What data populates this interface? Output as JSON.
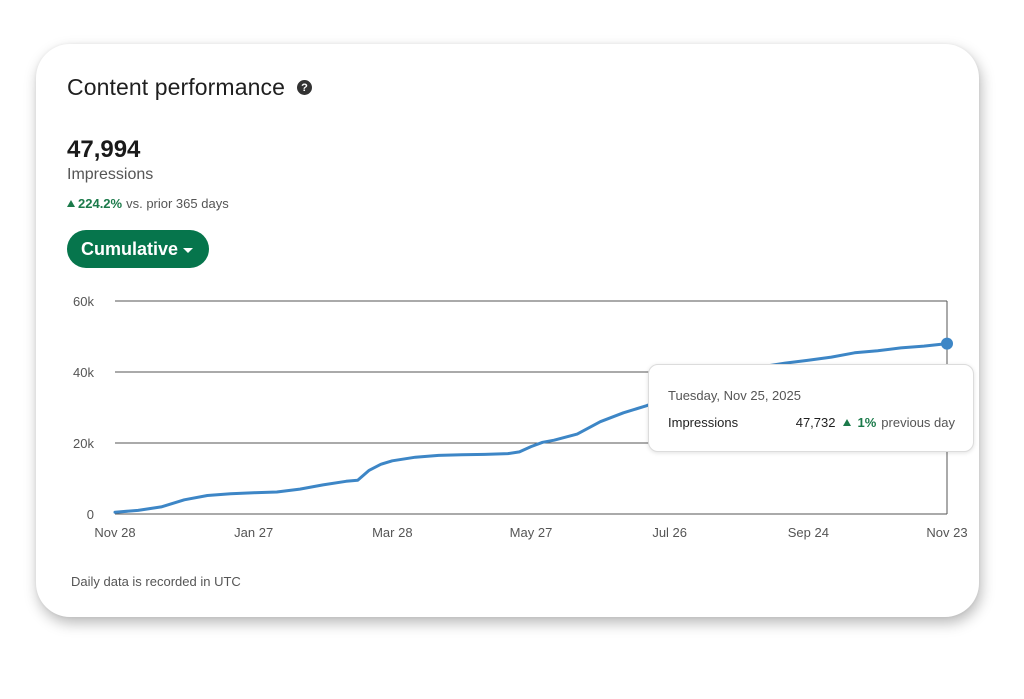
{
  "card": {
    "title": "Content performance",
    "help_icon": "help-circle-icon",
    "help_glyph": "?",
    "metric_value": "47,994",
    "metric_label": "Impressions",
    "change_value": "224.2%",
    "change_suffix": "vs. prior 365 days",
    "dropdown_label": "Cumulative",
    "footer_note": "Daily data is recorded in UTC"
  },
  "tooltip": {
    "date": "Tuesday, Nov 25, 2025",
    "label": "Impressions",
    "value": "47,732",
    "change": "1%",
    "change_suffix": "previous day"
  },
  "colors": {
    "line": "#3d86c6",
    "accent_green": "#06754c",
    "positive": "#1b7a4a",
    "grid": "#555555"
  },
  "chart_data": {
    "type": "line",
    "xlabel": "",
    "ylabel": "",
    "x_ticks": [
      "Nov 28",
      "Jan 27",
      "Mar 28",
      "May 27",
      "Jul 26",
      "Sep 24",
      "Nov 23"
    ],
    "y_ticks": [
      "0",
      "20k",
      "40k",
      "60k"
    ],
    "ylim": [
      0,
      60000
    ],
    "x_range_days": [
      0,
      360
    ],
    "grid": true,
    "series": [
      {
        "name": "Impressions",
        "x": [
          0,
          10,
          20,
          30,
          40,
          50,
          60,
          70,
          80,
          90,
          100,
          105,
          110,
          115,
          120,
          130,
          140,
          150,
          160,
          170,
          175,
          180,
          185,
          190,
          200,
          210,
          220,
          230,
          240,
          250,
          260,
          270,
          280,
          290,
          300,
          310,
          320,
          330,
          340,
          350,
          360
        ],
        "y": [
          500,
          1000,
          2000,
          4000,
          5200,
          5700,
          6000,
          6200,
          7000,
          8200,
          9200,
          9500,
          12300,
          14000,
          15000,
          16000,
          16500,
          16700,
          16800,
          17000,
          17500,
          19000,
          20200,
          20800,
          22500,
          26000,
          28500,
          30500,
          33000,
          35500,
          37500,
          39500,
          41500,
          42500,
          43300,
          44200,
          45400,
          46000,
          46800,
          47300,
          48000
        ]
      }
    ],
    "highlight_point": {
      "x": 360,
      "y": 48000
    }
  }
}
